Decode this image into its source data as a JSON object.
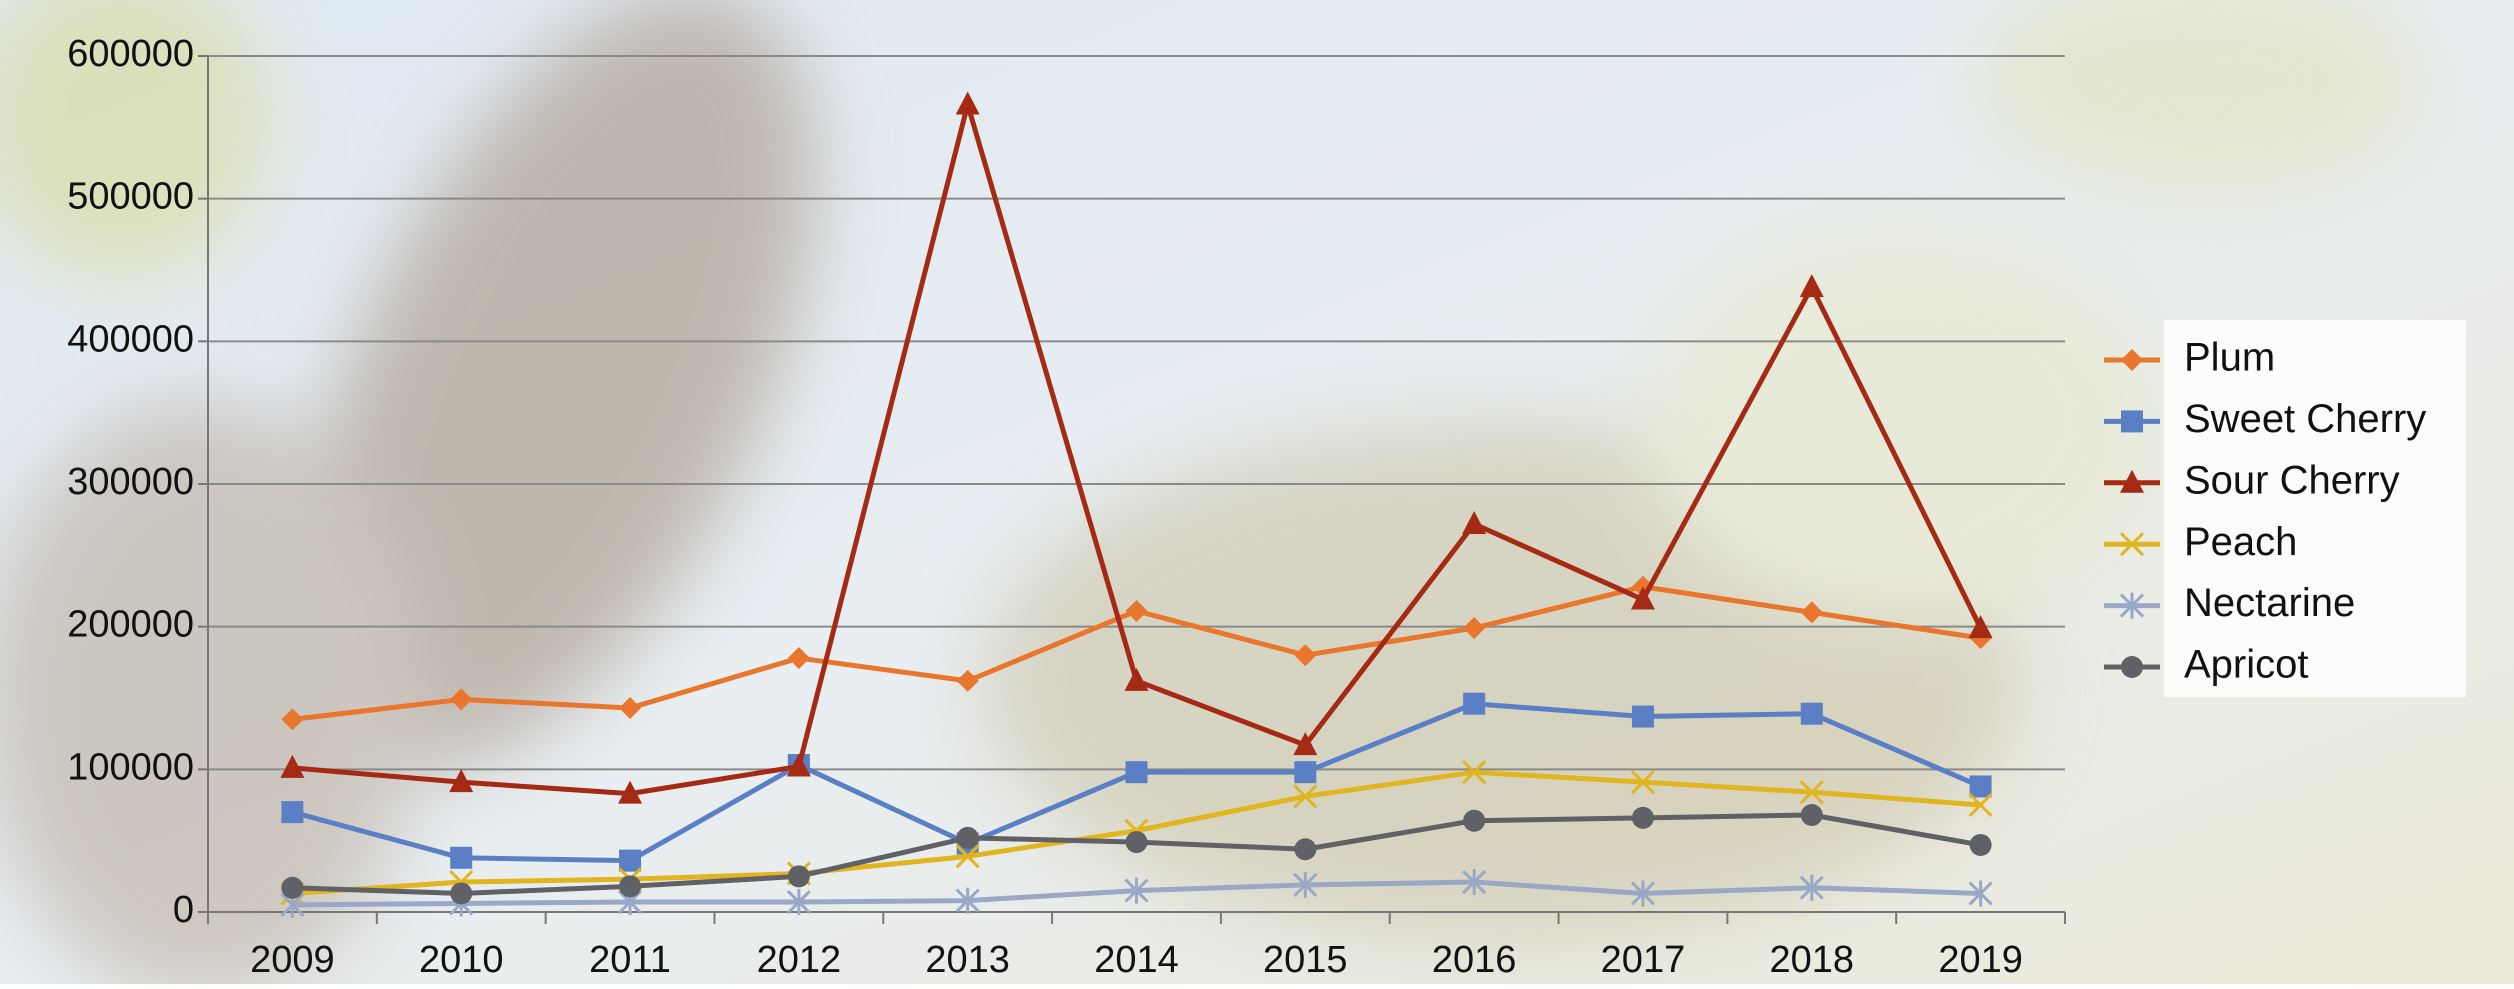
{
  "chart_data": {
    "type": "line",
    "categories": [
      "2009",
      "2010",
      "2011",
      "2012",
      "2013",
      "2014",
      "2015",
      "2016",
      "2017",
      "2018",
      "2019"
    ],
    "series": [
      {
        "name": "Plum",
        "color": "#e8762c",
        "marker": "diamond",
        "values": [
          135000,
          149000,
          143000,
          178000,
          162000,
          211000,
          180000,
          199000,
          228000,
          210000,
          192000
        ]
      },
      {
        "name": "Sweet Cherry",
        "color": "#5b7fc4",
        "marker": "square",
        "values": [
          70000,
          38000,
          36000,
          103000,
          48000,
          98000,
          98000,
          146000,
          137000,
          139000,
          88000
        ]
      },
      {
        "name": "Sour Cherry",
        "color": "#a52a14",
        "marker": "triangle",
        "values": [
          101000,
          91000,
          83000,
          102000,
          566000,
          162000,
          117000,
          272000,
          219000,
          438000,
          199000
        ]
      },
      {
        "name": "Peach",
        "color": "#e0b520",
        "marker": "x",
        "values": [
          13000,
          21000,
          23000,
          27000,
          39000,
          57000,
          81000,
          98000,
          91000,
          84000,
          75000
        ]
      },
      {
        "name": "Nectarine",
        "color": "#9aa8c8",
        "marker": "star",
        "values": [
          5000,
          6000,
          7000,
          7000,
          8000,
          15000,
          19000,
          21000,
          13000,
          17000,
          13000
        ]
      },
      {
        "name": "Apricot",
        "color": "#5f6166",
        "marker": "circle",
        "values": [
          17000,
          13000,
          18000,
          25000,
          52000,
          49000,
          44000,
          64000,
          66000,
          68000,
          47000
        ]
      }
    ],
    "ylim": [
      0,
      600000
    ],
    "yticks": [
      0,
      100000,
      200000,
      300000,
      400000,
      500000,
      600000
    ],
    "grid": true,
    "legend": "right"
  }
}
